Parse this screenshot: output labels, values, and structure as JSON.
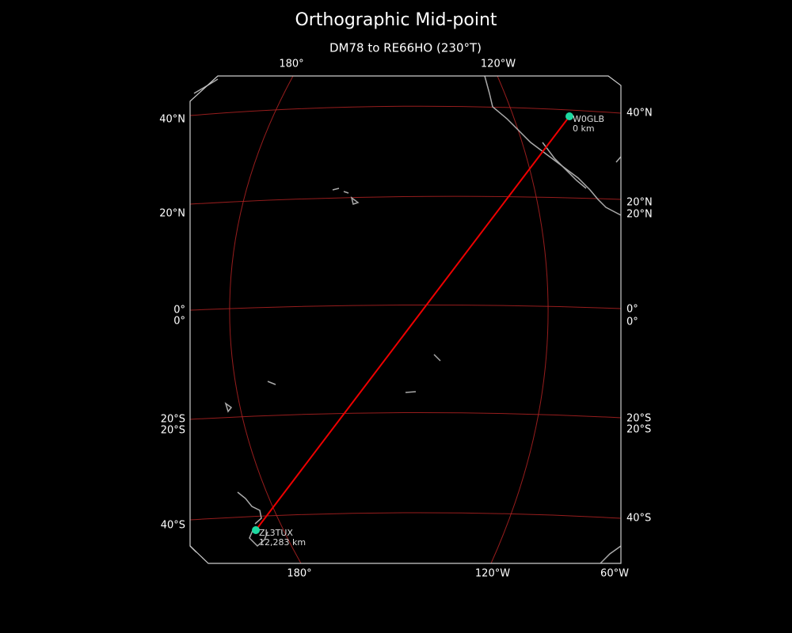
{
  "title": "Orthographic Mid-point",
  "subtitle": "DM78 to RE66HO (230°T)",
  "top_labels": [
    "180°",
    "120°W"
  ],
  "bottom_labels": [
    "180°",
    "120°W",
    "60°W"
  ],
  "left_labels": [
    "40°N",
    "20°N",
    "0°",
    "0°",
    "20°S",
    "20°S",
    "40°S"
  ],
  "right_labels": [
    "40°N",
    "20°N",
    "20°N",
    "0°",
    "0°",
    "20°S",
    "20°S",
    "40°S"
  ],
  "stations": [
    {
      "name": "W0GLB",
      "distance": "0 km"
    },
    {
      "name": "ZL3TUX",
      "distance": "12,283 km"
    }
  ]
}
